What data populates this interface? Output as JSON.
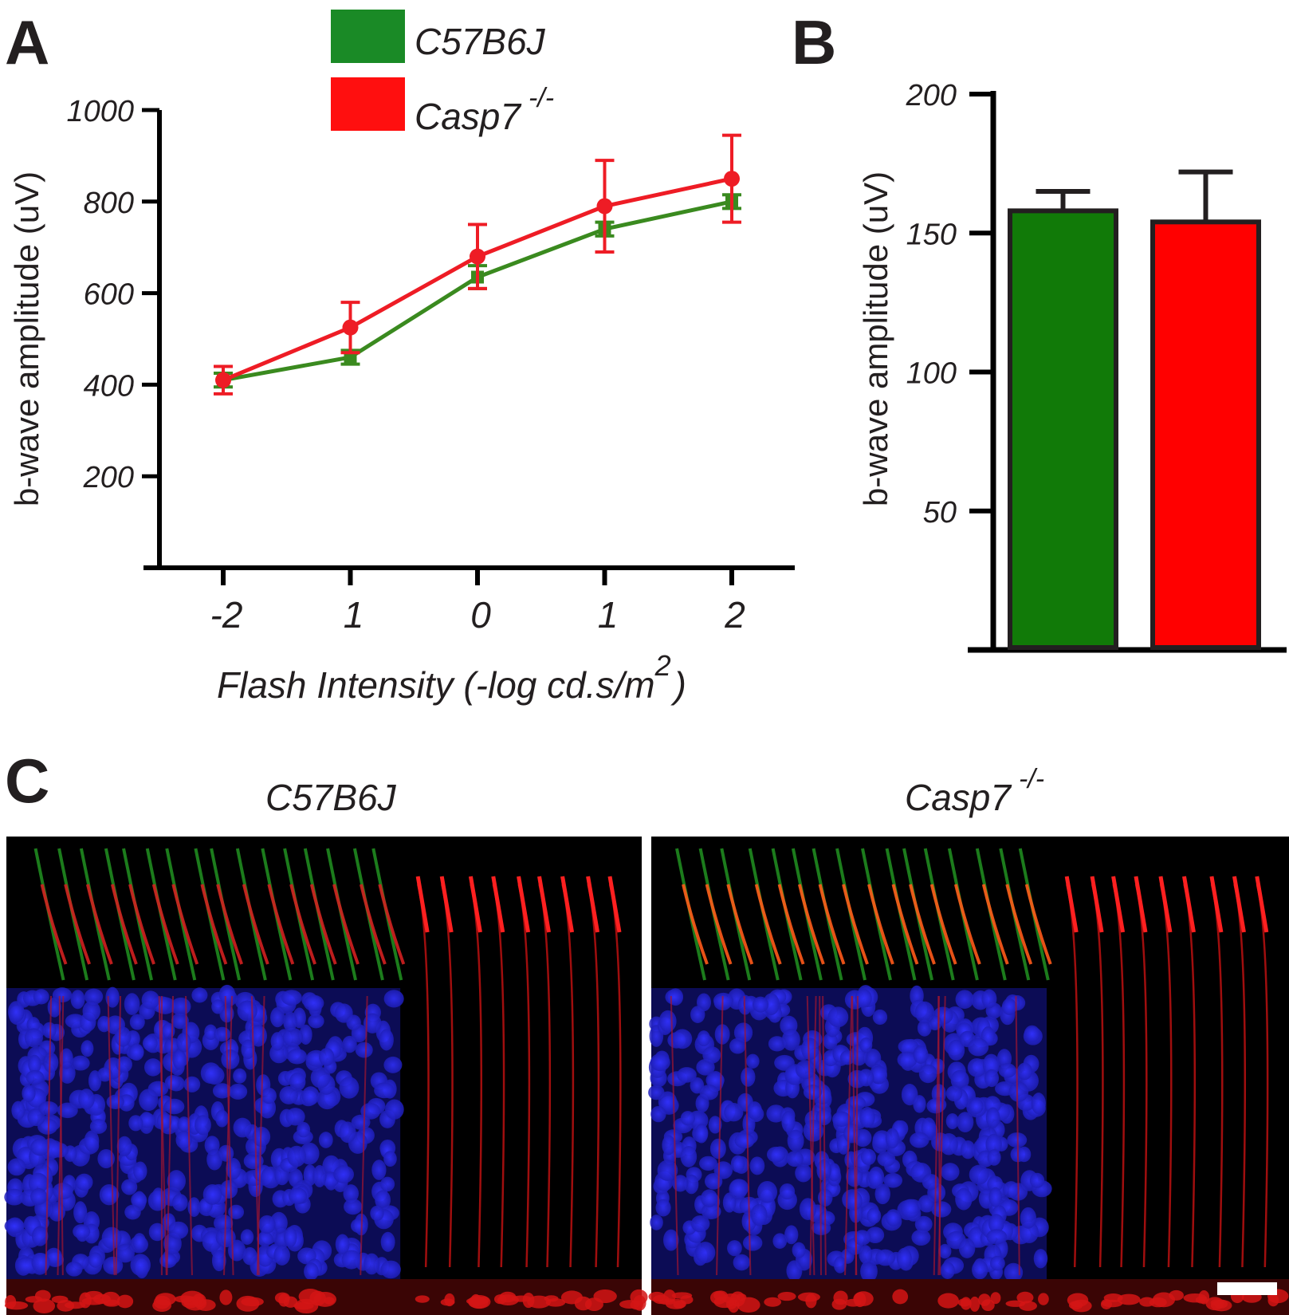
{
  "panels": {
    "a": "A",
    "b": "B",
    "c": "C"
  },
  "legend": {
    "items": [
      {
        "label": "C57B6J",
        "sup": "",
        "color": "#1a8a26"
      },
      {
        "label": "Casp7",
        "sup": "-/-",
        "color": "#ff0f0f"
      }
    ]
  },
  "chart_data": [
    {
      "panel": "A",
      "type": "line",
      "categories": [
        "-2",
        "1",
        "0",
        "1",
        "2"
      ],
      "xlabel": "Flash Intensity (-log cd.s/m",
      "xlabel_sup": "2",
      "xlabel_end": ")",
      "ylabel": "b-wave amplitude (uV)",
      "yticks": [
        200,
        400,
        600,
        800,
        1000
      ],
      "ylim": [
        0,
        1000
      ],
      "grid": false,
      "series": [
        {
          "name": "C57B6J",
          "color": "#3a8a1f",
          "values": [
            410,
            460,
            635,
            740,
            800
          ],
          "errors": [
            15,
            15,
            25,
            15,
            15
          ]
        },
        {
          "name": "Casp7 -/-",
          "color": "#ee1c25",
          "values": [
            410,
            525,
            680,
            790,
            850
          ],
          "errors": [
            30,
            55,
            70,
            100,
            95
          ]
        }
      ]
    },
    {
      "panel": "B",
      "type": "bar",
      "categories": [
        "C57B6J",
        "Casp7 -/-"
      ],
      "ylabel": "b-wave amplitude (uV)",
      "yticks": [
        50,
        100,
        150,
        200
      ],
      "ylim": [
        0,
        200
      ],
      "grid": false,
      "series": [
        {
          "name": "b-wave amplitude",
          "values": [
            158,
            154
          ],
          "errors": [
            7,
            18
          ],
          "colors": [
            "#117a08",
            "#ff0000"
          ]
        }
      ]
    }
  ],
  "images": [
    {
      "title": "C57B6J",
      "sup": "",
      "description_channels": [
        "green",
        "red",
        "blue"
      ]
    },
    {
      "title": "Casp7",
      "sup": "-/-",
      "description_channels": [
        "green",
        "red",
        "blue"
      ]
    }
  ]
}
